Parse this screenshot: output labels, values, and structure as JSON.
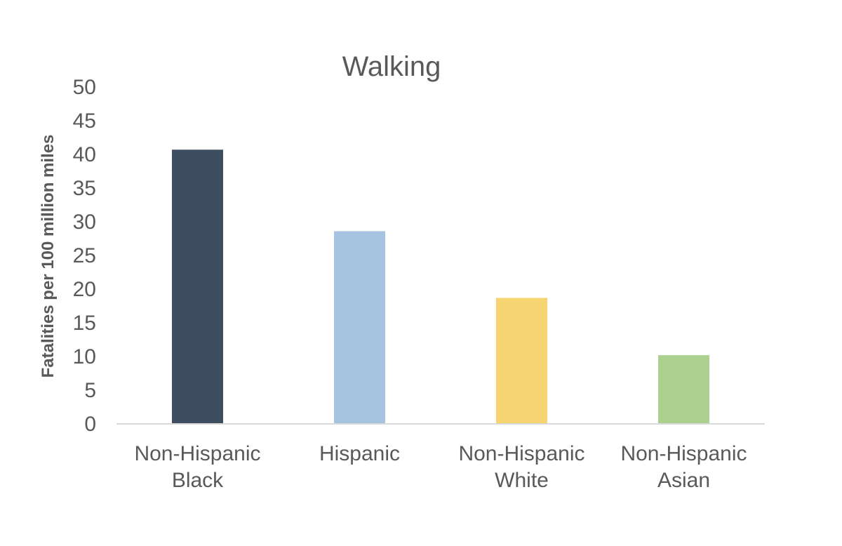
{
  "chart_data": {
    "type": "bar",
    "title": "Walking",
    "ylabel": "Fatalities per 100 million miles",
    "xlabel": "",
    "categories": [
      [
        "Non-Hispanic",
        "Black"
      ],
      [
        "Hispanic"
      ],
      [
        "Non-Hispanic",
        "White"
      ],
      [
        "Non-Hispanic",
        "Asian"
      ]
    ],
    "values": [
      40.7,
      28.6,
      18.7,
      10.2
    ],
    "colors": [
      "#3f4d60",
      "#a7c3e2",
      "#f5d471",
      "#acd090"
    ],
    "ylim": [
      0,
      50
    ],
    "yticks": [
      0,
      5,
      10,
      15,
      20,
      25,
      30,
      35,
      40,
      45,
      50
    ],
    "grid": false,
    "legend": "none",
    "axis_color": "#d9d9d9"
  }
}
